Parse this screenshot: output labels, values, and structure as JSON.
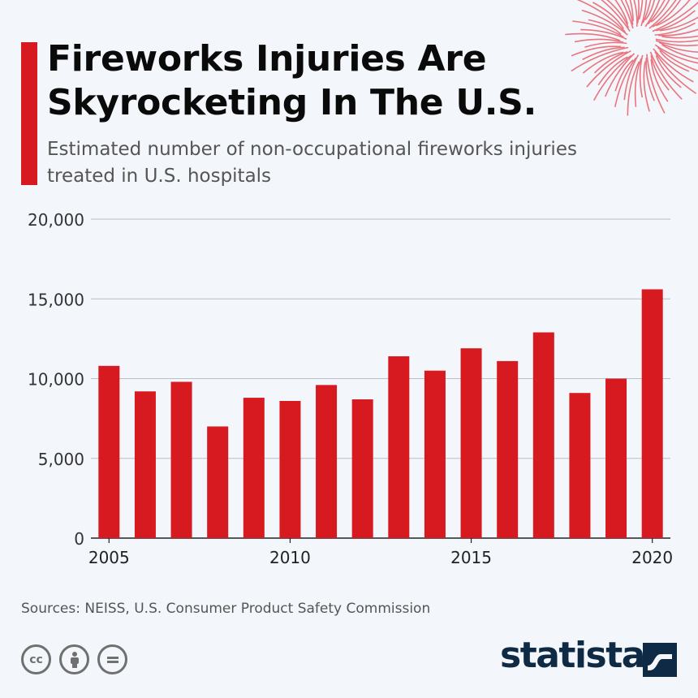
{
  "header": {
    "title": "Fireworks Injuries Are Skyrocketing In The U.S.",
    "subtitle": "Estimated number of non-occupational fireworks injuries treated in U.S. hospitals"
  },
  "footer": {
    "source": "Sources: NEISS, U.S. Consumer Product Safety Commission",
    "brand": "statista",
    "license_icons": [
      "cc-icon",
      "attribution-icon",
      "no-derivatives-icon"
    ]
  },
  "colors": {
    "bar": "#d71920",
    "accent": "#d71920",
    "firework": "#e8747e",
    "brand": "#0f2a44"
  },
  "chart_data": {
    "type": "bar",
    "categories": [
      2005,
      2006,
      2007,
      2008,
      2009,
      2010,
      2011,
      2012,
      2013,
      2014,
      2015,
      2016,
      2017,
      2018,
      2019,
      2020
    ],
    "values": [
      10800,
      9200,
      9800,
      7000,
      8800,
      8600,
      9600,
      8700,
      11400,
      10500,
      11900,
      11100,
      12900,
      9100,
      10000,
      15600
    ],
    "title": "Fireworks Injuries Are Skyrocketing In The U.S.",
    "subtitle": "Estimated number of non-occupational fireworks injuries treated in U.S. hospitals",
    "xlabel": "",
    "ylabel": "",
    "ylim": [
      0,
      20000
    ],
    "y_ticks": [
      0,
      5000,
      10000,
      15000,
      20000
    ],
    "y_tick_labels": [
      "0",
      "5,000",
      "10,000",
      "15,000",
      "20,000"
    ],
    "x_tick_labels": [
      "2005",
      "2010",
      "2015",
      "2020"
    ],
    "grid": true
  }
}
